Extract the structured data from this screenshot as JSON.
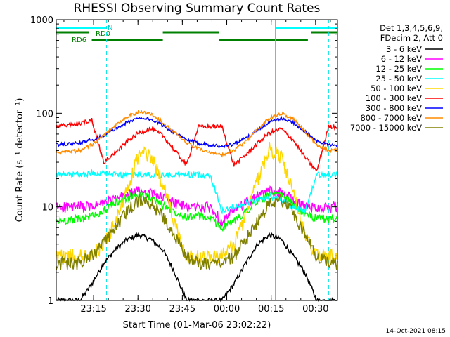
{
  "chart_data": {
    "type": "line",
    "title": "RHESSI Observing Summary Count Rates",
    "xlabel": "Start Time (01-Mar-06 23:02:22)",
    "ylabel": "Count Rate (s⁻¹ detector⁻¹)",
    "y_scale": "log",
    "ylim": [
      1,
      1000
    ],
    "x_range_minutes": [
      0,
      95
    ],
    "x_ticks": [
      {
        "label": "23:15",
        "minutes": 12.6
      },
      {
        "label": "23:30",
        "minutes": 27.6
      },
      {
        "label": "23:45",
        "minutes": 42.6
      },
      {
        "label": "00:00",
        "minutes": 57.6
      },
      {
        "label": "00:15",
        "minutes": 72.6
      },
      {
        "label": "00:30",
        "minutes": 87.6
      }
    ],
    "y_ticks": [
      {
        "label": "1",
        "value": 1
      },
      {
        "label": "10",
        "value": 10
      },
      {
        "label": "100",
        "value": 100
      },
      {
        "label": "1000",
        "value": 1000
      }
    ],
    "legend_header": [
      "Det 1,3,4,5,6,9,",
      "FDecim 2, Att 0"
    ],
    "legend_placement": "right",
    "series": [
      {
        "name": "3 - 6 keV",
        "color": "#000000",
        "x": [
          0,
          8,
          12,
          16,
          20,
          24,
          28,
          32,
          36,
          40,
          44,
          48,
          52,
          56,
          60,
          64,
          68,
          72,
          76,
          80,
          84,
          88,
          92,
          95
        ],
        "y": [
          1,
          1,
          1.5,
          2.5,
          3.5,
          4.5,
          5,
          4.5,
          3.5,
          2,
          1,
          1,
          1,
          1,
          1.5,
          2.5,
          4,
          5,
          4.5,
          3,
          2,
          1,
          1,
          1
        ]
      },
      {
        "name": "6 - 12 keV",
        "color": "#ff00ff",
        "x": [
          0,
          8,
          12,
          16,
          20,
          24,
          28,
          32,
          36,
          40,
          44,
          48,
          52,
          56,
          60,
          64,
          68,
          72,
          76,
          80,
          84,
          88,
          92,
          95
        ],
        "y": [
          10,
          10,
          10,
          11,
          12,
          13.5,
          15,
          14,
          12.5,
          11,
          10,
          10,
          10,
          7,
          9,
          11,
          13,
          15,
          14,
          12,
          10,
          10,
          10,
          10
        ]
      },
      {
        "name": "12 - 25 keV",
        "color": "#00ff00",
        "x": [
          0,
          8,
          12,
          16,
          20,
          24,
          28,
          32,
          36,
          40,
          44,
          48,
          52,
          56,
          60,
          64,
          68,
          72,
          76,
          80,
          84,
          88,
          92,
          95
        ],
        "y": [
          7,
          7.5,
          8,
          9,
          11,
          12.5,
          13.5,
          12.5,
          10.5,
          9,
          8,
          8,
          7.5,
          6,
          7,
          9,
          11.5,
          13.5,
          13,
          11,
          8.5,
          7.5,
          7.5,
          7.5
        ]
      },
      {
        "name": "25 - 50 keV",
        "color": "#00ffff",
        "x": [
          0,
          8,
          12,
          16,
          20,
          24,
          28,
          32,
          36,
          40,
          44,
          48,
          52,
          56,
          60,
          64,
          68,
          72,
          76,
          80,
          84,
          88,
          92,
          95
        ],
        "y": [
          22,
          22,
          23,
          23,
          22,
          22,
          22,
          22,
          22,
          22,
          22,
          22,
          22,
          9,
          10,
          11,
          12,
          13,
          12,
          10,
          9,
          22,
          22,
          22
        ]
      },
      {
        "name": "50 - 100 keV",
        "color": "#ffd700",
        "x": [
          0,
          8,
          12,
          16,
          20,
          24,
          28,
          32,
          36,
          40,
          44,
          48,
          52,
          56,
          60,
          64,
          68,
          72,
          76,
          80,
          84,
          88,
          92,
          95
        ],
        "y": [
          3,
          3,
          3,
          4,
          7,
          15,
          38,
          35,
          18,
          7,
          3,
          3,
          3,
          3,
          4,
          8,
          20,
          42,
          35,
          14,
          5,
          3,
          3,
          3
        ]
      },
      {
        "name": "100 - 300 keV",
        "color": "#ff0000",
        "x": [
          0,
          8,
          12,
          16,
          20,
          24,
          28,
          32,
          36,
          40,
          44,
          48,
          52,
          56,
          60,
          64,
          68,
          72,
          76,
          80,
          84,
          88,
          92,
          95
        ],
        "y": [
          72,
          78,
          85,
          30,
          38,
          50,
          62,
          68,
          58,
          40,
          28,
          72,
          72,
          72,
          28,
          36,
          48,
          62,
          68,
          52,
          34,
          24,
          72,
          72
        ]
      },
      {
        "name": "300 - 800 keV",
        "color": "#0000ff",
        "x": [
          0,
          8,
          12,
          16,
          20,
          24,
          28,
          32,
          36,
          40,
          44,
          48,
          52,
          56,
          60,
          64,
          68,
          72,
          76,
          80,
          84,
          88,
          92,
          95
        ],
        "y": [
          46,
          48,
          52,
          58,
          68,
          80,
          90,
          86,
          74,
          62,
          52,
          48,
          46,
          44,
          47,
          54,
          66,
          80,
          88,
          80,
          64,
          50,
          46,
          46
        ]
      },
      {
        "name": "800 - 7000 keV",
        "color": "#ff8c00",
        "x": [
          0,
          8,
          12,
          16,
          20,
          24,
          28,
          32,
          36,
          40,
          44,
          48,
          52,
          56,
          60,
          64,
          68,
          72,
          76,
          80,
          84,
          88,
          92,
          95
        ],
        "y": [
          38,
          40,
          46,
          58,
          74,
          92,
          104,
          98,
          80,
          62,
          48,
          42,
          38,
          36,
          40,
          50,
          68,
          88,
          100,
          88,
          64,
          46,
          40,
          40
        ]
      },
      {
        "name": "7000 - 15000 keV",
        "color": "#808000",
        "x": [
          0,
          8,
          12,
          16,
          20,
          24,
          28,
          32,
          36,
          40,
          44,
          48,
          52,
          56,
          60,
          64,
          68,
          72,
          76,
          80,
          84,
          88,
          92,
          95
        ],
        "y": [
          2.5,
          2.5,
          3,
          4,
          6,
          9,
          12,
          11,
          8,
          5,
          3,
          2.5,
          2.5,
          2.5,
          3,
          4.5,
          7,
          11,
          12,
          9,
          5,
          3,
          2.5,
          2.5
        ]
      }
    ],
    "flag_labels": [
      "N",
      "RD0",
      "RD6"
    ],
    "footer_timestamp": "14-Oct-2021 08:15"
  }
}
